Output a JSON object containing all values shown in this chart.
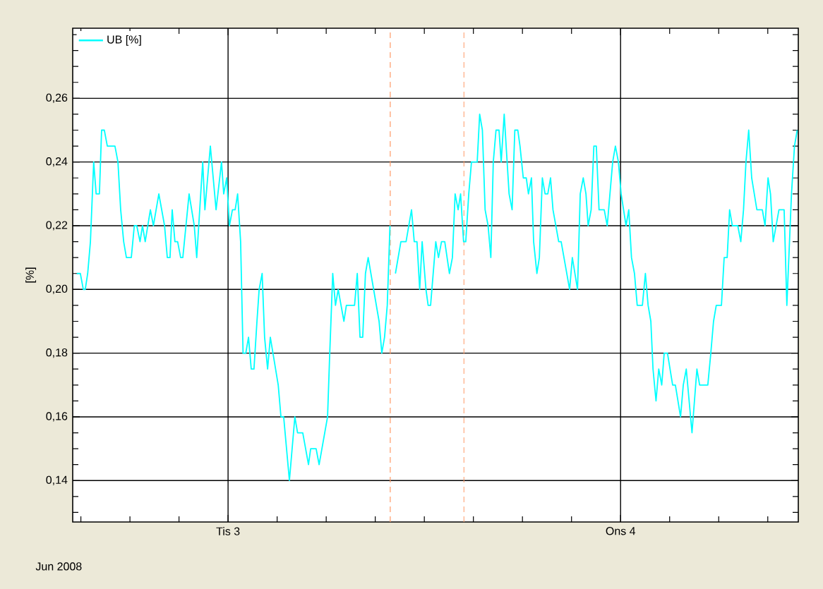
{
  "chart_data": {
    "type": "line",
    "ylabel": "[%]",
    "annotations": [
      "Jun 2008"
    ],
    "xlim": [
      "2008-06-02T14:30",
      "2008-06-04T10:52"
    ],
    "xticks": [
      {
        "value": "2008-06-02T15:00",
        "label": null
      },
      {
        "value": "2008-06-02T18:00",
        "label": null
      },
      {
        "value": "2008-06-02T21:00",
        "label": null
      },
      {
        "value": "2008-06-03T00:00",
        "label": "Tis 3"
      },
      {
        "value": "2008-06-03T03:00",
        "label": null
      },
      {
        "value": "2008-06-03T06:00",
        "label": null
      },
      {
        "value": "2008-06-03T09:00",
        "label": null
      },
      {
        "value": "2008-06-03T12:00",
        "label": null
      },
      {
        "value": "2008-06-03T15:00",
        "label": null
      },
      {
        "value": "2008-06-03T18:00",
        "label": null
      },
      {
        "value": "2008-06-03T21:00",
        "label": null
      },
      {
        "value": "2008-06-04T00:00",
        "label": "Ons 4"
      },
      {
        "value": "2008-06-04T03:00",
        "label": null
      },
      {
        "value": "2008-06-04T06:00",
        "label": null
      },
      {
        "value": "2008-06-04T09:00",
        "label": null
      }
    ],
    "ylim": [
      0.127,
      0.282
    ],
    "yticks": [
      {
        "value": 0.13,
        "label": null
      },
      {
        "value": 0.135,
        "label": null
      },
      {
        "value": 0.14,
        "label": "0,14"
      },
      {
        "value": 0.145,
        "label": null
      },
      {
        "value": 0.15,
        "label": null
      },
      {
        "value": 0.155,
        "label": null
      },
      {
        "value": 0.16,
        "label": "0,16"
      },
      {
        "value": 0.165,
        "label": null
      },
      {
        "value": 0.17,
        "label": null
      },
      {
        "value": 0.175,
        "label": null
      },
      {
        "value": 0.18,
        "label": "0,18"
      },
      {
        "value": 0.185,
        "label": null
      },
      {
        "value": 0.19,
        "label": null
      },
      {
        "value": 0.195,
        "label": null
      },
      {
        "value": 0.2,
        "label": "0,20"
      },
      {
        "value": 0.205,
        "label": null
      },
      {
        "value": 0.21,
        "label": null
      },
      {
        "value": 0.215,
        "label": null
      },
      {
        "value": 0.22,
        "label": "0,22"
      },
      {
        "value": 0.225,
        "label": null
      },
      {
        "value": 0.23,
        "label": null
      },
      {
        "value": 0.235,
        "label": null
      },
      {
        "value": 0.24,
        "label": "0,24"
      },
      {
        "value": 0.245,
        "label": null
      },
      {
        "value": 0.25,
        "label": null
      },
      {
        "value": 0.255,
        "label": null
      },
      {
        "value": 0.26,
        "label": "0,26"
      },
      {
        "value": 0.265,
        "label": null
      },
      {
        "value": 0.27,
        "label": null
      },
      {
        "value": 0.275,
        "label": null
      },
      {
        "value": 0.28,
        "label": null
      }
    ],
    "grid": true,
    "legend": "top left",
    "marker": "none",
    "ref_lines": [
      {
        "axis": "x",
        "value": "2008-06-03T09:55",
        "color": "#ff9966",
        "line_style": "dashed"
      },
      {
        "axis": "x",
        "value": "2008-06-03T14:25",
        "color": "#ff9966",
        "line_style": "dashed"
      }
    ],
    "series": [
      {
        "name": "UB [%]",
        "color": "#00ffff",
        "x": [
          "2008-06-02T14:45",
          "2008-06-02T14:58",
          "2008-06-02T15:09",
          "2008-06-02T15:16",
          "2008-06-02T15:25",
          "2008-06-02T15:35",
          "2008-06-02T15:47",
          "2008-06-02T15:56",
          "2008-06-02T16:08",
          "2008-06-02T16:16",
          "2008-06-02T16:26",
          "2008-06-02T16:37",
          "2008-06-02T17:05",
          "2008-06-02T17:16",
          "2008-06-02T17:26",
          "2008-06-02T17:37",
          "2008-06-02T17:47",
          "2008-06-02T18:05",
          "2008-06-02T18:16",
          "2008-06-02T18:25",
          "2008-06-02T18:37",
          "2008-06-02T18:46",
          "2008-06-02T18:56",
          "2008-06-02T19:15",
          "2008-06-02T19:26",
          "2008-06-02T19:46",
          "2008-06-02T20:07",
          "2008-06-02T20:17",
          "2008-06-02T20:27",
          "2008-06-02T20:35",
          "2008-06-02T20:45",
          "2008-06-02T20:55",
          "2008-06-02T21:06",
          "2008-06-02T21:14",
          "2008-06-02T21:37",
          "2008-06-02T21:56",
          "2008-06-02T22:05",
          "2008-06-02T22:27",
          "2008-06-02T22:35",
          "2008-06-02T22:55",
          "2008-06-02T23:16",
          "2008-06-02T23:36",
          "2008-06-02T23:44",
          "2008-06-02T23:55",
          "2008-06-03T00:05",
          "2008-06-03T00:16",
          "2008-06-03T00:26",
          "2008-06-03T00:35",
          "2008-06-03T00:46",
          "2008-06-03T00:55",
          "2008-06-03T01:05",
          "2008-06-03T01:15",
          "2008-06-03T01:25",
          "2008-06-03T01:35",
          "2008-06-03T01:46",
          "2008-06-03T01:54",
          "2008-06-03T02:05",
          "2008-06-03T02:14",
          "2008-06-03T02:25",
          "2008-06-03T02:35",
          "2008-06-03T03:04",
          "2008-06-03T03:14",
          "2008-06-03T03:24",
          "2008-06-03T03:45",
          "2008-06-03T04:05",
          "2008-06-03T04:15",
          "2008-06-03T04:34",
          "2008-06-03T04:55",
          "2008-06-03T05:03",
          "2008-06-03T05:23",
          "2008-06-03T05:34",
          "2008-06-03T06:05",
          "2008-06-03T06:13",
          "2008-06-03T06:24",
          "2008-06-03T06:34",
          "2008-06-03T06:44",
          "2008-06-03T07:05",
          "2008-06-03T07:14",
          "2008-06-03T07:44",
          "2008-06-03T07:54",
          "2008-06-03T08:04",
          "2008-06-03T08:14",
          "2008-06-03T08:24",
          "2008-06-03T08:34",
          "2008-06-03T09:14",
          "2008-06-03T09:24",
          "2008-06-03T09:34",
          "2008-06-03T09:44",
          "2008-06-03T09:54",
          "2008-06-03T10:04",
          "2008-06-03T10:14",
          "2008-06-03T10:34",
          "2008-06-03T10:53",
          "2008-06-03T11:13",
          "2008-06-03T11:23",
          "2008-06-03T11:33",
          "2008-06-03T11:43",
          "2008-06-03T11:52",
          "2008-06-03T12:06",
          "2008-06-03T12:14",
          "2008-06-03T12:23",
          "2008-06-03T12:42",
          "2008-06-03T12:52",
          "2008-06-03T13:03",
          "2008-06-03T13:15",
          "2008-06-03T13:32",
          "2008-06-03T13:43",
          "2008-06-03T13:53",
          "2008-06-03T14:04",
          "2008-06-03T14:13",
          "2008-06-03T14:24",
          "2008-06-03T14:32",
          "2008-06-03T14:43",
          "2008-06-03T14:53",
          "2008-06-03T15:14",
          "2008-06-03T15:23",
          "2008-06-03T15:33",
          "2008-06-03T15:43",
          "2008-06-03T15:54",
          "2008-06-03T16:04",
          "2008-06-03T16:13",
          "2008-06-03T16:23",
          "2008-06-03T16:34",
          "2008-06-03T16:42",
          "2008-06-03T16:53",
          "2008-06-03T17:11",
          "2008-06-03T17:22",
          "2008-06-03T17:32",
          "2008-06-03T17:43",
          "2008-06-03T17:51",
          "2008-06-03T18:03",
          "2008-06-03T18:14",
          "2008-06-03T18:22",
          "2008-06-03T18:33",
          "2008-06-03T18:41",
          "2008-06-03T18:53",
          "2008-06-03T19:02",
          "2008-06-03T19:13",
          "2008-06-03T19:23",
          "2008-06-03T19:33",
          "2008-06-03T19:43",
          "2008-06-03T19:52",
          "2008-06-03T20:13",
          "2008-06-03T20:22",
          "2008-06-03T20:53",
          "2008-06-03T21:03",
          "2008-06-03T21:22",
          "2008-06-03T21:32",
          "2008-06-03T21:43",
          "2008-06-03T21:53",
          "2008-06-03T22:01",
          "2008-06-03T22:12",
          "2008-06-03T22:22",
          "2008-06-03T22:31",
          "2008-06-03T22:41",
          "2008-06-03T23:00",
          "2008-06-03T23:11",
          "2008-06-03T23:31",
          "2008-06-03T23:41",
          "2008-06-03T23:52",
          "2008-06-04T00:02",
          "2008-06-04T00:20",
          "2008-06-04T00:30",
          "2008-06-04T00:40",
          "2008-06-04T00:51",
          "2008-06-04T01:01",
          "2008-06-04T01:20",
          "2008-06-04T01:31",
          "2008-06-04T01:41",
          "2008-06-04T01:51",
          "2008-06-04T01:59",
          "2008-06-04T02:10",
          "2008-06-04T02:20",
          "2008-06-04T02:31",
          "2008-06-04T02:40",
          "2008-06-04T02:52",
          "2008-06-04T03:11",
          "2008-06-04T03:21",
          "2008-06-04T03:40",
          "2008-06-04T03:50",
          "2008-06-04T04:01",
          "2008-06-04T04:22",
          "2008-06-04T04:40",
          "2008-06-04T04:50",
          "2008-06-04T05:20",
          "2008-06-04T05:31",
          "2008-06-04T05:41",
          "2008-06-04T05:51",
          "2008-06-04T06:10",
          "2008-06-04T06:20",
          "2008-06-04T06:31",
          "2008-06-04T06:40",
          "2008-06-04T06:50",
          "2008-06-04T07:10",
          "2008-06-04T07:21",
          "2008-06-04T07:31",
          "2008-06-04T07:40",
          "2008-06-04T07:50",
          "2008-06-04T08:01",
          "2008-06-04T08:20",
          "2008-06-04T08:40",
          "2008-06-04T08:50",
          "2008-06-04T09:01",
          "2008-06-04T09:10",
          "2008-06-04T09:20",
          "2008-06-04T09:41",
          "2008-06-04T10:00",
          "2008-06-04T10:10",
          "2008-06-04T10:27",
          "2008-06-04T10:38",
          "2008-06-04T10:48"
        ],
        "values": [
          0.205,
          0.205,
          0.2,
          0.2,
          0.205,
          0.215,
          0.24,
          0.23,
          0.23,
          0.25,
          0.25,
          0.245,
          0.245,
          0.24,
          0.225,
          0.215,
          0.21,
          0.21,
          0.22,
          0.22,
          0.215,
          0.22,
          0.215,
          0.225,
          0.22,
          0.23,
          0.22,
          0.21,
          0.21,
          0.225,
          0.215,
          0.215,
          0.21,
          0.21,
          0.23,
          0.22,
          0.21,
          0.24,
          0.225,
          0.245,
          0.225,
          0.24,
          0.23,
          0.235,
          0.22,
          0.225,
          0.225,
          0.23,
          0.215,
          0.18,
          0.18,
          0.185,
          0.175,
          0.175,
          0.19,
          0.2,
          0.205,
          0.185,
          0.175,
          0.185,
          0.17,
          0.16,
          0.16,
          0.14,
          0.16,
          0.155,
          0.155,
          0.145,
          0.15,
          0.15,
          0.145,
          0.16,
          0.18,
          0.205,
          0.195,
          0.2,
          0.19,
          0.195,
          0.195,
          0.205,
          0.185,
          0.185,
          0.205,
          0.21,
          0.19,
          0.18,
          0.185,
          0.195,
          0.22,
          null,
          0.205,
          0.215,
          0.215,
          0.225,
          0.215,
          0.215,
          0.2,
          0.215,
          0.2,
          0.195,
          0.195,
          0.215,
          0.21,
          0.215,
          0.215,
          0.205,
          0.21,
          0.23,
          0.225,
          0.23,
          0.215,
          0.215,
          0.23,
          0.24,
          0.24,
          0.255,
          0.25,
          0.225,
          0.22,
          0.21,
          0.24,
          0.25,
          0.25,
          0.24,
          0.255,
          0.23,
          0.225,
          0.25,
          0.25,
          0.245,
          0.235,
          0.235,
          0.23,
          0.235,
          0.215,
          0.205,
          0.21,
          0.235,
          0.23,
          0.23,
          0.235,
          0.225,
          0.215,
          0.215,
          0.2,
          0.21,
          0.2,
          0.23,
          0.235,
          0.23,
          0.22,
          0.225,
          0.245,
          0.245,
          0.225,
          0.225,
          0.22,
          0.24,
          0.245,
          0.24,
          0.23,
          0.22,
          0.225,
          0.21,
          0.205,
          0.195,
          0.195,
          0.205,
          0.195,
          0.19,
          0.175,
          0.165,
          0.175,
          0.17,
          0.18,
          0.18,
          0.17,
          0.17,
          0.16,
          0.17,
          0.175,
          0.155,
          0.175,
          0.17,
          0.17,
          0.18,
          0.19,
          0.195,
          0.195,
          0.21,
          0.21,
          0.225,
          0.22,
          0.22,
          0.215,
          0.225,
          0.24,
          0.25,
          0.235,
          0.225,
          0.225,
          0.22,
          0.235,
          0.23,
          0.215,
          0.225,
          0.225,
          0.195,
          0.23,
          0.245,
          0.25
        ]
      }
    ]
  }
}
